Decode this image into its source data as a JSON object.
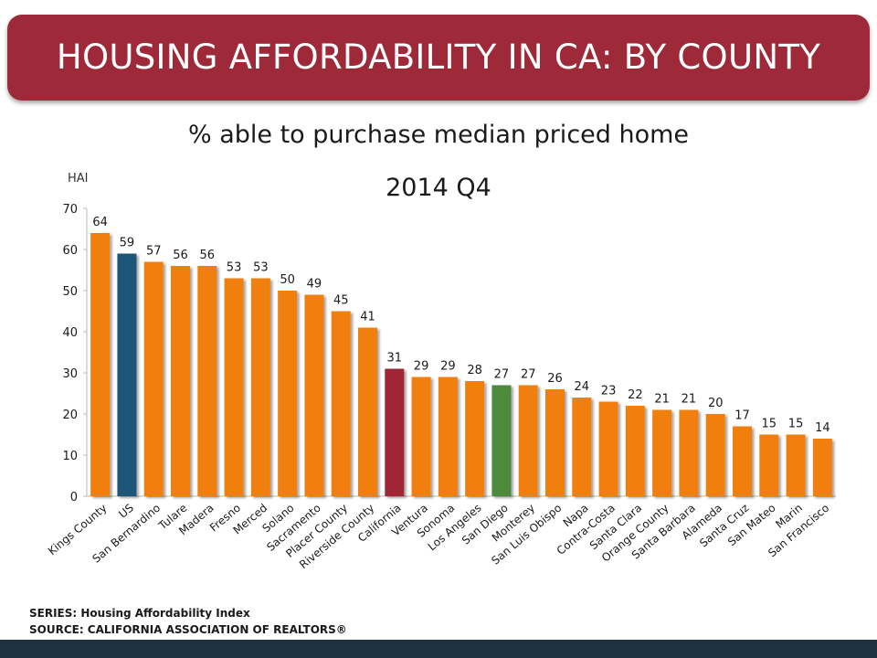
{
  "header": {
    "title": "HOUSING AFFORDABILITY IN CA: BY COUNTY"
  },
  "colors": {
    "header": "#9e2a39",
    "default_bar": "#f07f0e",
    "us_bar": "#1e5575",
    "california_bar": "#a02535",
    "sandiego_bar": "#4e8a3e",
    "bottom_bar": "#1d3140"
  },
  "chart_data": {
    "type": "bar",
    "title": "% able to purchase median priced home",
    "subtitle": "2014 Q4",
    "ylabel": "HAI",
    "xlabel": "",
    "ylim": [
      0,
      70
    ],
    "yticks": [
      0,
      10,
      20,
      30,
      40,
      50,
      60,
      70
    ],
    "grid": false,
    "categories": [
      "Kings County",
      "US",
      "San Bernardino",
      "Tulare",
      "Madera",
      "Fresno",
      "Merced",
      "Solano",
      "Sacramento",
      "Placer County",
      "Riverside County",
      "California",
      "Ventura",
      "Sonoma",
      "Los Angeles",
      "San Diego",
      "Monterey",
      "San Luis Obispo",
      "Napa",
      "Contra-Costa",
      "Santa Clara",
      "Orange County",
      "Santa Barbara",
      "Alameda",
      "Santa Cruz",
      "San Mateo",
      "Marin",
      "San Francisco"
    ],
    "values": [
      64,
      59,
      57,
      56,
      56,
      53,
      53,
      50,
      49,
      45,
      41,
      31,
      29,
      29,
      28,
      27,
      27,
      26,
      24,
      23,
      22,
      21,
      21,
      20,
      17,
      15,
      15,
      14
    ],
    "highlight": {
      "US": "us_bar",
      "California": "california_bar",
      "San Diego": "sandiego_bar"
    }
  },
  "footer": {
    "series": "SERIES: Housing Affordability Index",
    "source": "SOURCE:  CALIFORNIA ASSOCIATION OF REALTORS®"
  }
}
